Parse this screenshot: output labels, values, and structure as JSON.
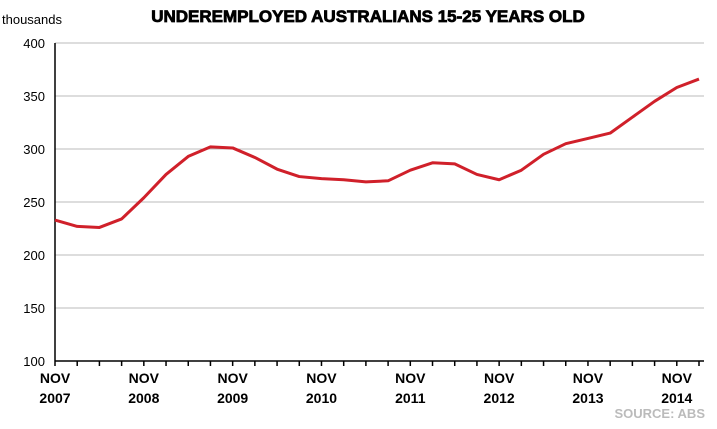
{
  "chart_data": {
    "type": "line",
    "title": "UNDEREMPLOYED AUSTRALIANS 15-25 YEARS OLD",
    "y_label": "thousands",
    "source": "SOURCE: ABS",
    "categories": [
      "NOV 2007",
      null,
      null,
      null,
      "NOV 2008",
      null,
      null,
      null,
      "NOV 2009",
      null,
      null,
      null,
      "NOV 2010",
      null,
      null,
      null,
      "NOV 2011",
      null,
      null,
      null,
      "NOV 2012",
      null,
      null,
      null,
      "NOV 2013",
      null,
      null,
      null,
      "NOV 2014",
      null
    ],
    "series": [
      {
        "name": "Underemployed 15-25",
        "color": "#d0202a",
        "values": [
          233,
          227,
          226,
          234,
          254,
          276,
          293,
          302,
          301,
          292,
          281,
          274,
          272,
          271,
          269,
          270,
          280,
          287,
          286,
          276,
          271,
          280,
          295,
          305,
          310,
          315,
          330,
          345,
          358,
          366
        ]
      }
    ],
    "ylim": [
      100,
      400
    ],
    "yticks": [
      100,
      150,
      200,
      250,
      300,
      350,
      400
    ],
    "grid": true
  }
}
